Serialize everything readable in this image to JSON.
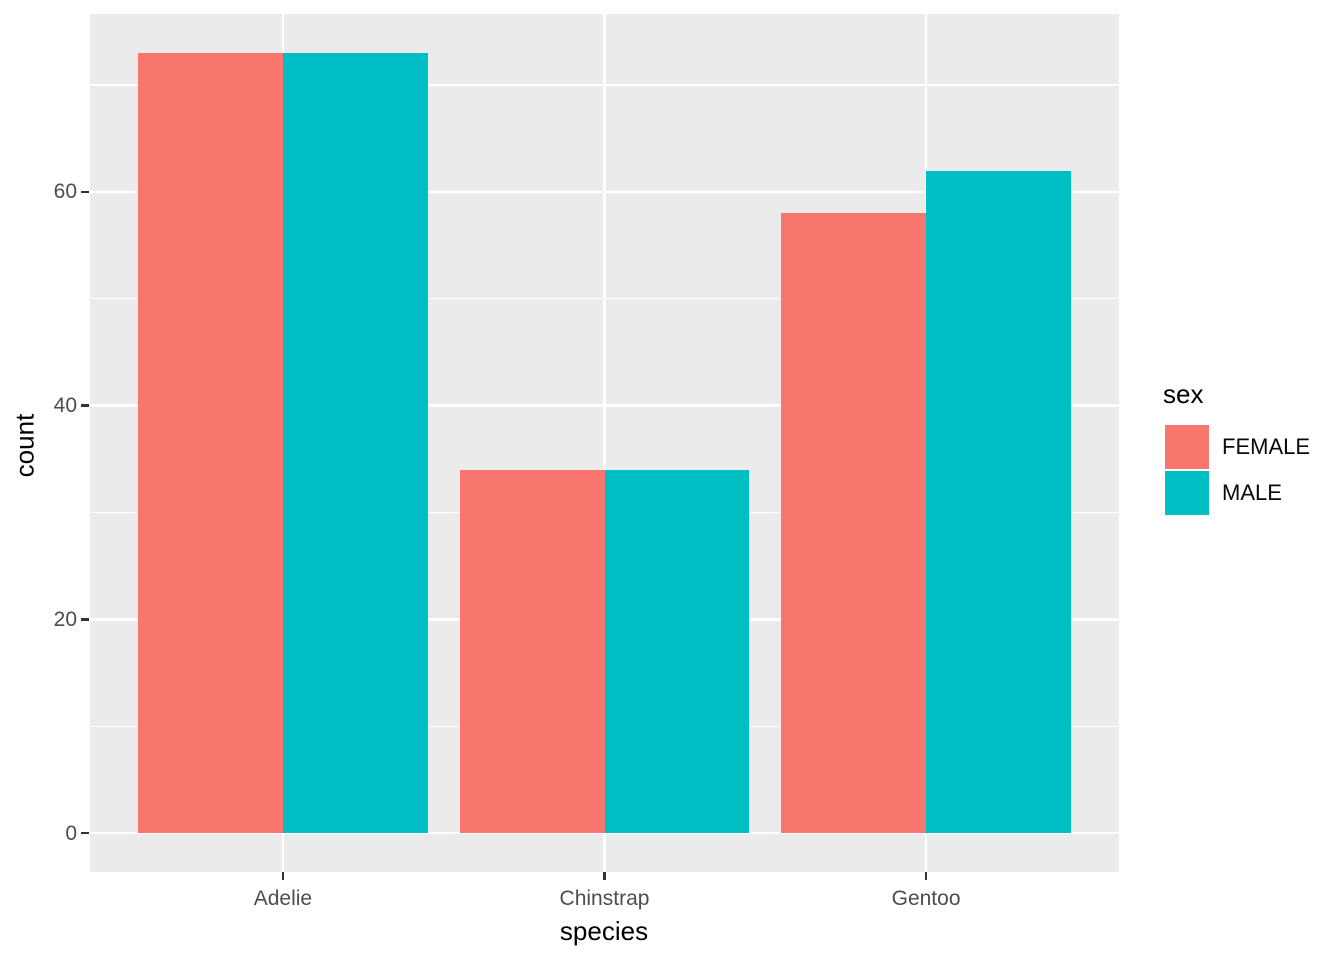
{
  "chart_data": {
    "type": "bar",
    "grouping": "dodge",
    "categories": [
      "Adelie",
      "Chinstrap",
      "Gentoo"
    ],
    "series": [
      {
        "name": "FEMALE",
        "color": "#F8766D",
        "values": [
          73,
          34,
          58
        ]
      },
      {
        "name": "MALE",
        "color": "#00BFC4",
        "values": [
          73,
          34,
          62
        ]
      }
    ],
    "title": "",
    "xlabel": "species",
    "ylabel": "count",
    "legend_title": "sex",
    "legend_position": "right",
    "ylim": [
      0,
      73
    ],
    "yticks_major": [
      0,
      20,
      40,
      60
    ],
    "yticks_minor": [
      10,
      30,
      50,
      70
    ],
    "y_expansion": 0.05,
    "x_expansion": 0.6,
    "bar_rel_width": 0.9,
    "grid": true,
    "panel_bg": "#EBEBEB",
    "grid_color": "#FFFFFF",
    "tick_color": "#333333",
    "axis_text_color": "#4D4D4D",
    "title_color": "#000000"
  }
}
